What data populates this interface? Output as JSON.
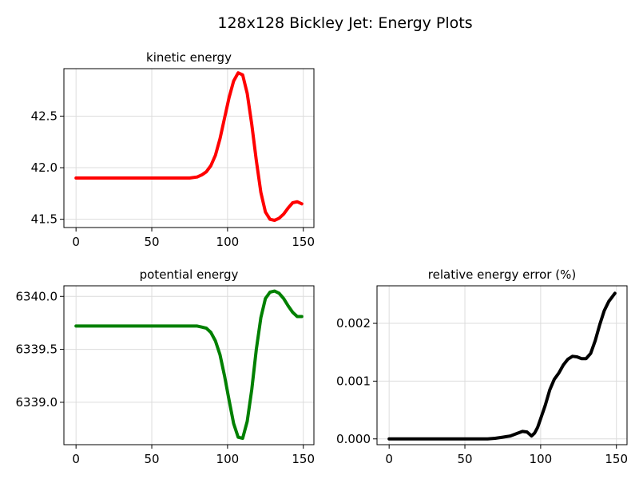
{
  "figure_title": "128x128 Bickley Jet: Energy Plots",
  "chart_data": [
    {
      "type": "line",
      "title": "kinetic energy",
      "xlabel": "",
      "ylabel": "",
      "xlim": [
        -8,
        157
      ],
      "ylim": [
        41.42,
        42.96
      ],
      "xticks": [
        0,
        50,
        100,
        150
      ],
      "yticks": [
        41.5,
        42.0,
        42.5
      ],
      "ytick_labels": [
        "41.5",
        "42.0",
        "42.5"
      ],
      "grid": true,
      "series": [
        {
          "color": "#ff0000",
          "x": [
            0,
            10,
            20,
            30,
            40,
            50,
            60,
            70,
            75,
            80,
            83,
            86,
            89,
            92,
            95,
            98,
            101,
            104,
            107,
            110,
            113,
            116,
            119,
            122,
            125,
            128,
            131,
            134,
            137,
            140,
            143,
            146,
            149
          ],
          "y": [
            41.9,
            41.9,
            41.9,
            41.9,
            41.9,
            41.9,
            41.9,
            41.9,
            41.9,
            41.91,
            41.93,
            41.96,
            42.02,
            42.12,
            42.28,
            42.48,
            42.68,
            42.84,
            42.92,
            42.9,
            42.72,
            42.42,
            42.07,
            41.76,
            41.57,
            41.5,
            41.49,
            41.51,
            41.55,
            41.61,
            41.66,
            41.67,
            41.65
          ]
        }
      ]
    },
    {
      "type": "line",
      "title": "potential energy",
      "xlabel": "",
      "ylabel": "",
      "xlim": [
        -8,
        157
      ],
      "ylim": [
        6338.6,
        6340.1
      ],
      "xticks": [
        0,
        50,
        100,
        150
      ],
      "yticks": [
        6339.0,
        6339.5,
        6340.0
      ],
      "ytick_labels": [
        "6339.0",
        "6339.5",
        "6340.0"
      ],
      "grid": true,
      "series": [
        {
          "color": "#008000",
          "x": [
            0,
            10,
            20,
            30,
            40,
            50,
            60,
            70,
            75,
            80,
            83,
            86,
            89,
            92,
            95,
            98,
            101,
            104,
            107,
            110,
            113,
            116,
            119,
            122,
            125,
            128,
            131,
            134,
            137,
            140,
            143,
            146,
            149
          ],
          "y": [
            6339.72,
            6339.72,
            6339.72,
            6339.72,
            6339.72,
            6339.72,
            6339.72,
            6339.72,
            6339.72,
            6339.72,
            6339.71,
            6339.7,
            6339.66,
            6339.58,
            6339.45,
            6339.25,
            6339.02,
            6338.8,
            6338.67,
            6338.66,
            6338.82,
            6339.12,
            6339.5,
            6339.8,
            6339.98,
            6340.04,
            6340.05,
            6340.03,
            6339.98,
            6339.91,
            6339.85,
            6339.81,
            6339.81
          ]
        }
      ]
    },
    {
      "type": "line",
      "title": "relative energy error (%)",
      "xlabel": "",
      "ylabel": "",
      "xlim": [
        -8,
        157
      ],
      "ylim": [
        -0.0001,
        0.00265
      ],
      "xticks": [
        0,
        50,
        100,
        150
      ],
      "yticks": [
        0.0,
        0.001,
        0.002
      ],
      "ytick_labels": [
        "0.000",
        "0.001",
        "0.002"
      ],
      "grid": true,
      "series": [
        {
          "color": "#000000",
          "x": [
            0,
            10,
            20,
            30,
            40,
            50,
            60,
            65,
            70,
            75,
            80,
            85,
            88,
            91,
            94,
            96,
            98,
            100,
            103,
            106,
            109,
            112,
            115,
            118,
            121,
            124,
            127,
            130,
            133,
            136,
            139,
            142,
            145,
            149
          ],
          "y": [
            0.0,
            0.0,
            0.0,
            0.0,
            0.0,
            0.0,
            0.0,
            0.0,
            1e-05,
            3e-05,
            5e-05,
            0.0001,
            0.00013,
            0.00012,
            5e-05,
            0.0001,
            0.0002,
            0.00035,
            0.00058,
            0.00085,
            0.00103,
            0.00114,
            0.00128,
            0.00138,
            0.00143,
            0.00142,
            0.00139,
            0.00139,
            0.00148,
            0.0017,
            0.00198,
            0.00222,
            0.00238,
            0.00252
          ]
        }
      ]
    }
  ]
}
